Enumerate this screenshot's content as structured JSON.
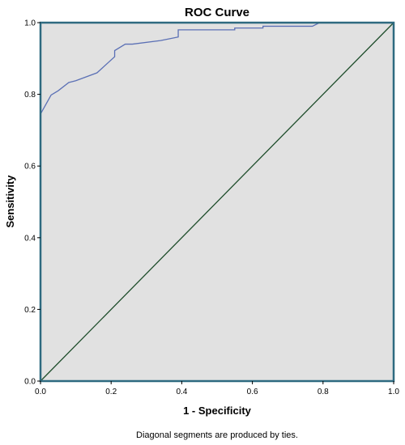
{
  "chart_data": {
    "type": "line",
    "title": "ROC Curve",
    "xlabel": "1 - Specificity",
    "ylabel": "Sensitivity",
    "xlim": [
      0,
      1
    ],
    "ylim": [
      0,
      1
    ],
    "x_ticks": [
      "0.0",
      "0.2",
      "0.4",
      "0.6",
      "0.8",
      "1.0"
    ],
    "y_ticks": [
      "0.0",
      "0.2",
      "0.4",
      "0.6",
      "0.8",
      "1.0"
    ],
    "grid": false,
    "plot_background": "#e1e1e1",
    "frame_color": "#2e6a80",
    "series": [
      {
        "color": "#5b70b5",
        "x": [
          0.0,
          0.0,
          0.03,
          0.05,
          0.08,
          0.1,
          0.16,
          0.19,
          0.21,
          0.21,
          0.24,
          0.26,
          0.34,
          0.39,
          0.39,
          0.55,
          0.55,
          0.63,
          0.63,
          0.77,
          0.79,
          1.0
        ],
        "y": [
          0.0,
          0.745,
          0.798,
          0.81,
          0.833,
          0.838,
          0.86,
          0.887,
          0.905,
          0.922,
          0.94,
          0.94,
          0.95,
          0.96,
          0.98,
          0.98,
          0.985,
          0.985,
          0.99,
          0.99,
          1.0,
          1.0
        ]
      },
      {
        "color": "#1e4d2b",
        "x": [
          0,
          1
        ],
        "y": [
          0,
          1
        ]
      }
    ],
    "footnote": "Diagonal segments are produced by ties."
  }
}
